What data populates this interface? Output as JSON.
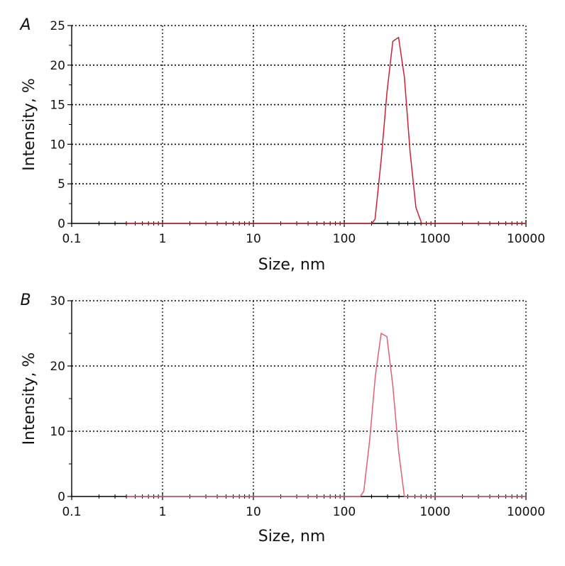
{
  "chart_data": [
    {
      "panel_label": "A",
      "type": "line",
      "xlabel": "Size, nm",
      "ylabel": "Intensity, %",
      "x_scale": "log",
      "xlim": [
        0.1,
        10000
      ],
      "ylim": [
        0,
        25
      ],
      "x_ticks": [
        0.1,
        1,
        10,
        100,
        1000,
        10000
      ],
      "x_tick_labels": [
        "0.1",
        "1",
        "10",
        "100",
        "1000",
        "10000"
      ],
      "y_ticks": [
        0,
        5,
        10,
        15,
        20,
        25
      ],
      "y_tick_labels": [
        "0",
        "5",
        "10",
        "15",
        "20",
        "25"
      ],
      "grid": true,
      "line_color": "#cc2233",
      "series": [
        {
          "x": [
            0.4,
            1,
            10,
            100,
            200,
            218,
            255,
            295,
            342,
            396,
            459,
            531,
            615,
            712,
            10000
          ],
          "y": [
            0,
            0,
            0,
            0,
            0,
            0.5,
            8.0,
            16.5,
            23.0,
            23.5,
            18.5,
            9.0,
            2.0,
            0,
            0
          ]
        }
      ]
    },
    {
      "panel_label": "B",
      "type": "line",
      "xlabel": "Size, nm",
      "ylabel": "Intensity, %",
      "x_scale": "log",
      "xlim": [
        0.1,
        10000
      ],
      "ylim": [
        0,
        30
      ],
      "x_ticks": [
        0.1,
        1,
        10,
        100,
        1000,
        10000
      ],
      "x_tick_labels": [
        "0.1",
        "1",
        "10",
        "100",
        "1000",
        "10000"
      ],
      "y_ticks": [
        0,
        10,
        20,
        30
      ],
      "y_tick_labels": [
        "0",
        "10",
        "20",
        "30"
      ],
      "grid": true,
      "line_color": "#e06070",
      "series": [
        {
          "x": [
            0.4,
            1,
            10,
            100,
            150,
            164,
            190,
            220,
            255,
            295,
            342,
            396,
            459,
            10000
          ],
          "y": [
            0,
            0,
            0,
            0,
            0,
            0.8,
            8.5,
            18.5,
            25.0,
            24.5,
            17.0,
            7.0,
            0,
            0
          ]
        }
      ]
    }
  ]
}
